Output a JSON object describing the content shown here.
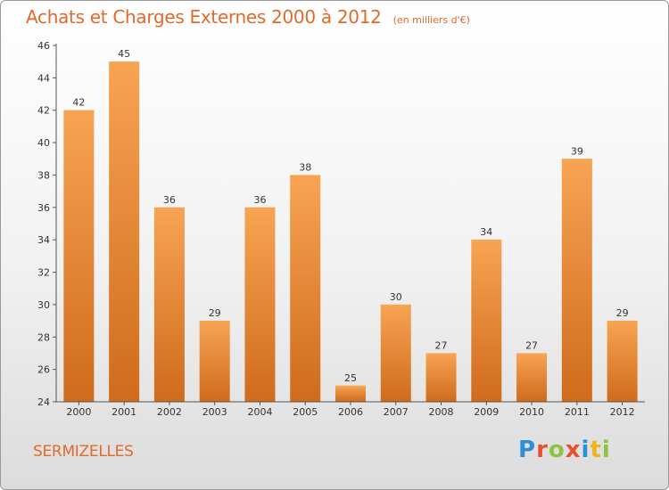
{
  "title": "Achats et Charges Externes 2000 à 2012",
  "unit": "(en milliers d'€)",
  "place": "SERMIZELLES",
  "brand": {
    "letters": [
      "P",
      "r",
      "o",
      "x",
      "i",
      "t",
      "i"
    ],
    "colors": [
      "#2e8fd6",
      "#e8502d",
      "#8cc33f",
      "#e8502d",
      "#2e8fd6",
      "#f2b31c",
      "#8cc33f"
    ]
  },
  "colors": {
    "bar_light": "#f7a453",
    "bar_dark": "#cf6b1c",
    "text": "#333333",
    "accent": "#e06a2a"
  },
  "chart_data": {
    "type": "bar",
    "categories": [
      "2000",
      "2001",
      "2002",
      "2003",
      "2004",
      "2005",
      "2006",
      "2007",
      "2008",
      "2009",
      "2010",
      "2011",
      "2012"
    ],
    "values": [
      42,
      45,
      36,
      29,
      36,
      38,
      25,
      30,
      27,
      34,
      27,
      39,
      29
    ],
    "title": "Achats et Charges Externes 2000 à 2012",
    "subtitle": "(en milliers d'€)",
    "ylim": [
      24,
      46
    ],
    "yticks": [
      24,
      26,
      28,
      30,
      32,
      34,
      36,
      38,
      40,
      42,
      44,
      46
    ],
    "grid": false,
    "data_labels": true
  }
}
